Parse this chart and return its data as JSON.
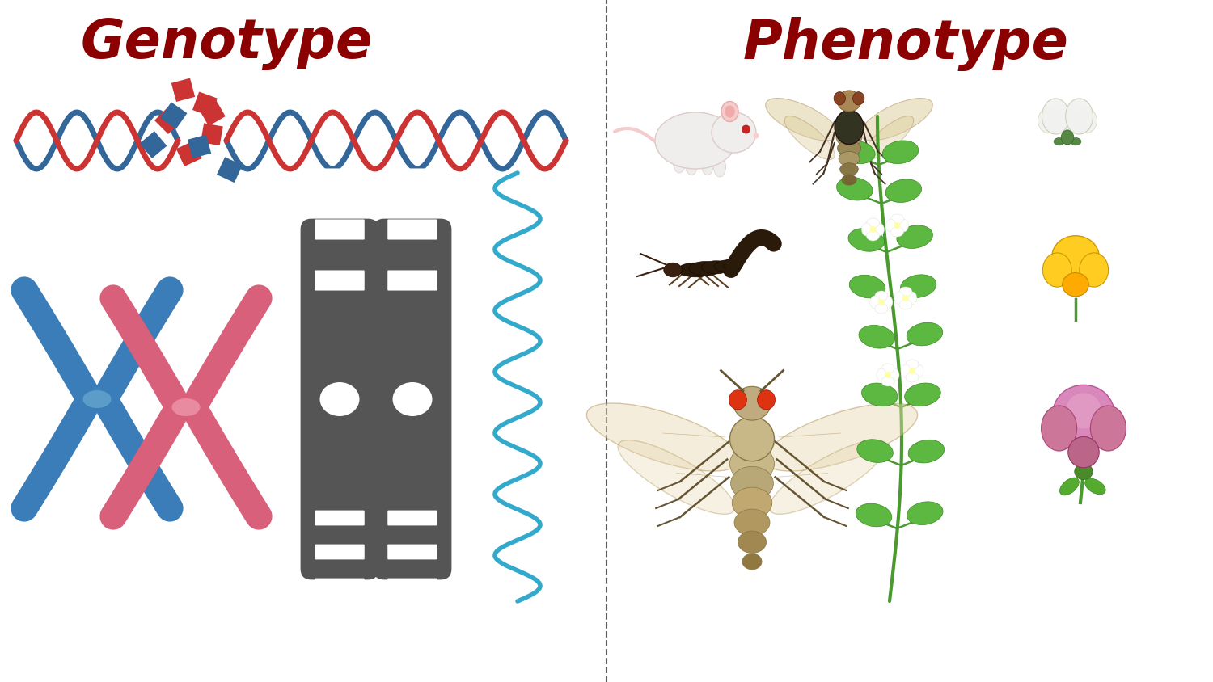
{
  "title_left": "Genotype",
  "title_right": "Phenotype",
  "title_color": "#8B0000",
  "title_fontsize": 48,
  "title_font_weight": "bold",
  "background_color": "#FFFFFF",
  "dna_color1": "#CC3333",
  "dna_color2": "#336699",
  "rna_color": "#33AACC",
  "chr_blue": "#3B7DB8",
  "chr_pink": "#D9607A",
  "chr_dark": "#555555",
  "fig_width": 15.0,
  "fig_height": 8.44,
  "dpi": 100
}
